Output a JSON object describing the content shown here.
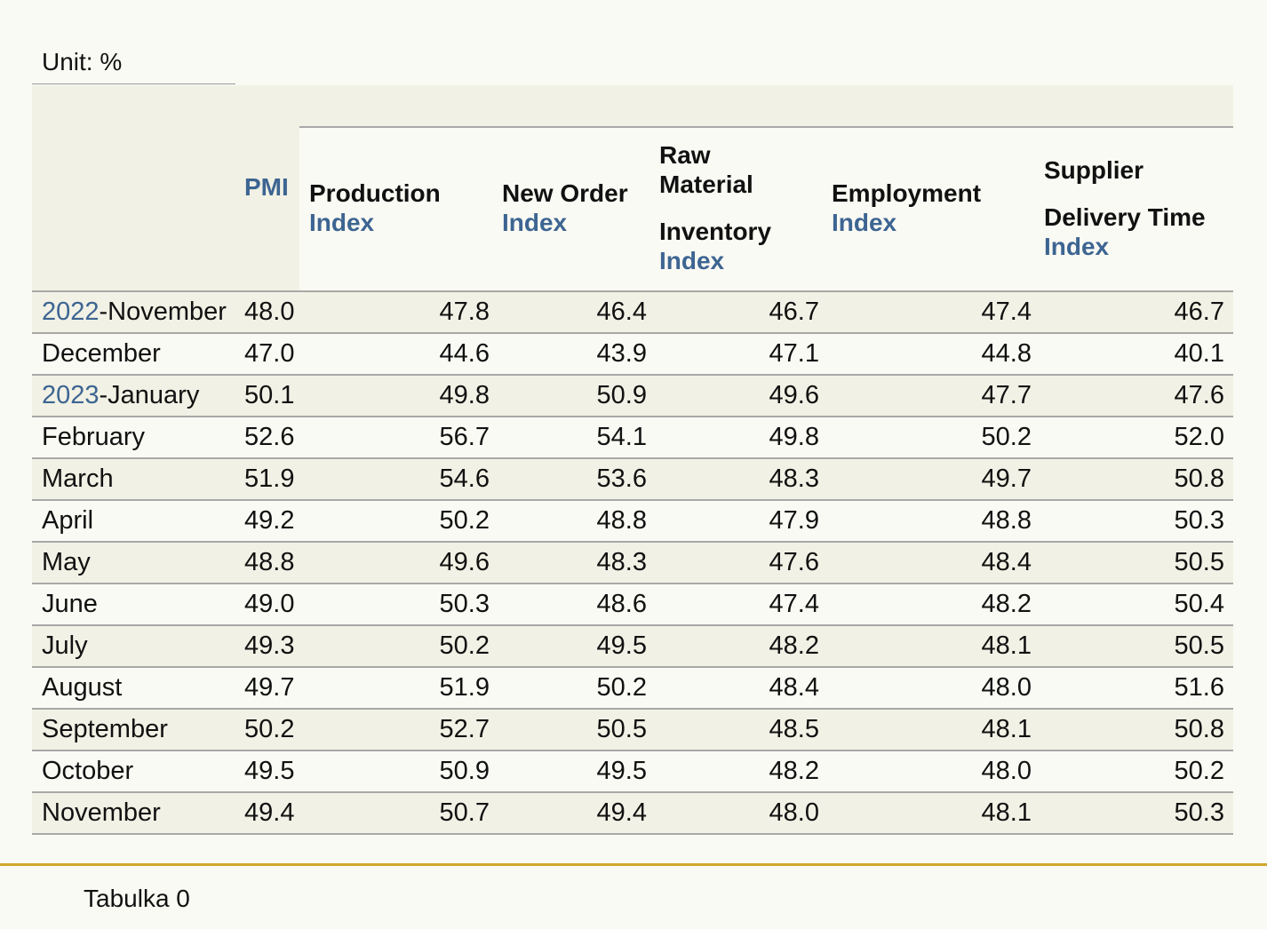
{
  "unit_label": "Unit: %",
  "columns": {
    "pmi": "PMI",
    "production": {
      "line1": "Production",
      "line2": "Index"
    },
    "new_order": {
      "line1": "New Order",
      "line2": "Index"
    },
    "raw_material": {
      "line1": "Raw",
      "line2": "Material",
      "line3": "Inventory",
      "line4": "Index"
    },
    "employment": {
      "line1": "Employment",
      "line2": "Index"
    },
    "supplier": {
      "line1": "Supplier",
      "line2": "Delivery Time",
      "line3": "Index"
    }
  },
  "rows": [
    {
      "year": "2022",
      "month": "-November",
      "pmi": "48.0",
      "production": "47.8",
      "new_order": "46.4",
      "raw_material": "46.7",
      "employment": "47.4",
      "supplier": "46.7"
    },
    {
      "year": "",
      "month": "December",
      "pmi": "47.0",
      "production": "44.6",
      "new_order": "43.9",
      "raw_material": "47.1",
      "employment": "44.8",
      "supplier": "40.1"
    },
    {
      "year": "2023",
      "month": "-January",
      "pmi": "50.1",
      "production": "49.8",
      "new_order": "50.9",
      "raw_material": "49.6",
      "employment": "47.7",
      "supplier": "47.6"
    },
    {
      "year": "",
      "month": "February",
      "pmi": "52.6",
      "production": "56.7",
      "new_order": "54.1",
      "raw_material": "49.8",
      "employment": "50.2",
      "supplier": "52.0"
    },
    {
      "year": "",
      "month": "March",
      "pmi": "51.9",
      "production": "54.6",
      "new_order": "53.6",
      "raw_material": "48.3",
      "employment": "49.7",
      "supplier": "50.8"
    },
    {
      "year": "",
      "month": "April",
      "pmi": "49.2",
      "production": "50.2",
      "new_order": "48.8",
      "raw_material": "47.9",
      "employment": "48.8",
      "supplier": "50.3"
    },
    {
      "year": "",
      "month": "May",
      "pmi": "48.8",
      "production": "49.6",
      "new_order": "48.3",
      "raw_material": "47.6",
      "employment": "48.4",
      "supplier": "50.5"
    },
    {
      "year": "",
      "month": "June",
      "pmi": "49.0",
      "production": "50.3",
      "new_order": "48.6",
      "raw_material": "47.4",
      "employment": "48.2",
      "supplier": "50.4"
    },
    {
      "year": "",
      "month": "July",
      "pmi": "49.3",
      "production": "50.2",
      "new_order": "49.5",
      "raw_material": "48.2",
      "employment": "48.1",
      "supplier": "50.5"
    },
    {
      "year": "",
      "month": "August",
      "pmi": "49.7",
      "production": "51.9",
      "new_order": "50.2",
      "raw_material": "48.4",
      "employment": "48.0",
      "supplier": "51.6"
    },
    {
      "year": "",
      "month": "September",
      "pmi": "50.2",
      "production": "52.7",
      "new_order": "50.5",
      "raw_material": "48.5",
      "employment": "48.1",
      "supplier": "50.8"
    },
    {
      "year": "",
      "month": "October",
      "pmi": "49.5",
      "production": "50.9",
      "new_order": "49.5",
      "raw_material": "48.2",
      "employment": "48.0",
      "supplier": "50.2"
    },
    {
      "year": "",
      "month": "November",
      "pmi": "49.4",
      "production": "50.7",
      "new_order": "49.4",
      "raw_material": "48.0",
      "employment": "48.1",
      "supplier": "50.3"
    }
  ],
  "caption": "Tabulka 0",
  "colors": {
    "header_blue": "#3d6592",
    "row_shade": "#f1f1e5",
    "footer_rule": "#d2a72c"
  }
}
